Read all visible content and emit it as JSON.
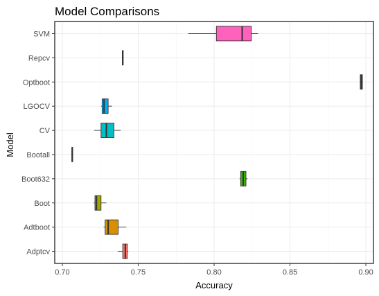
{
  "chart_data": {
    "type": "boxplot",
    "orientation": "horizontal",
    "title": "Model Comparisons",
    "xlabel": "Accuracy",
    "ylabel": "Model",
    "xlim": [
      0.695,
      0.905
    ],
    "xticks": [
      0.7,
      0.75,
      0.8,
      0.85,
      0.9
    ],
    "xtick_labels": [
      "0.70",
      "0.75",
      "0.80",
      "0.85",
      "0.90"
    ],
    "grid": true,
    "legend": "none",
    "series": [
      {
        "name": "Adptcv",
        "color": "#F8766D",
        "min": 0.7365,
        "q1": 0.7398,
        "median": 0.7415,
        "q3": 0.7428,
        "max": 0.7435
      },
      {
        "name": "Adtboot",
        "color": "#D89000",
        "min": 0.7272,
        "q1": 0.7282,
        "median": 0.7302,
        "q3": 0.7368,
        "max": 0.7422
      },
      {
        "name": "Boot",
        "color": "#A3A500",
        "min": 0.7208,
        "q1": 0.7215,
        "median": 0.7225,
        "q3": 0.7255,
        "max": 0.729
      },
      {
        "name": "Boot632",
        "color": "#39B600",
        "min": 0.8168,
        "q1": 0.8175,
        "median": 0.8192,
        "q3": 0.821,
        "max": 0.822
      },
      {
        "name": "Bootall",
        "color": "#00BF7D",
        "min": 0.706,
        "q1": 0.7063,
        "median": 0.7065,
        "q3": 0.7067,
        "max": 0.707
      },
      {
        "name": "CV",
        "color": "#00BFC4",
        "min": 0.721,
        "q1": 0.7255,
        "median": 0.729,
        "q3": 0.734,
        "max": 0.7385
      },
      {
        "name": "LGOCV",
        "color": "#00B0F6",
        "min": 0.7255,
        "q1": 0.7262,
        "median": 0.7275,
        "q3": 0.7302,
        "max": 0.7328
      },
      {
        "name": "Optboot",
        "color": "#9590FF",
        "min": 0.896,
        "q1": 0.8963,
        "median": 0.897,
        "q3": 0.8977,
        "max": 0.898
      },
      {
        "name": "Repcv",
        "color": "#E76BF3",
        "min": 0.7392,
        "q1": 0.7395,
        "median": 0.7398,
        "q3": 0.7401,
        "max": 0.7404
      },
      {
        "name": "SVM",
        "color": "#FF62BC",
        "min": 0.783,
        "q1": 0.8015,
        "median": 0.8185,
        "q3": 0.8245,
        "max": 0.829
      }
    ]
  }
}
